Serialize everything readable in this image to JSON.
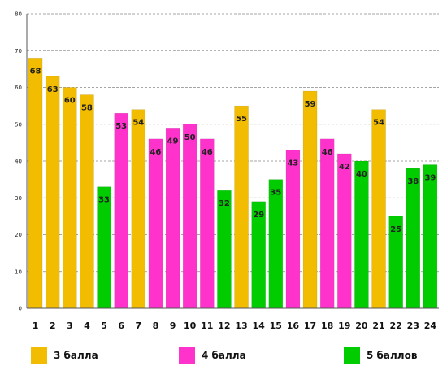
{
  "chart_data": {
    "type": "bar",
    "categories": [
      "1",
      "2",
      "3",
      "4",
      "5",
      "6",
      "7",
      "8",
      "9",
      "10",
      "11",
      "12",
      "13",
      "14",
      "15",
      "16",
      "17",
      "18",
      "19",
      "20",
      "21",
      "22",
      "23",
      "24"
    ],
    "values": [
      68,
      63,
      60,
      58,
      33,
      53,
      54,
      46,
      49,
      50,
      46,
      32,
      55,
      29,
      35,
      43,
      59,
      46,
      42,
      40,
      54,
      25,
      38,
      39
    ],
    "groups": [
      "3 балла",
      "3 балла",
      "3 балла",
      "3 балла",
      "5 баллов",
      "4 балла",
      "3 балла",
      "4 балла",
      "4 балла",
      "4 балла",
      "4 балла",
      "5 баллов",
      "3 балла",
      "5 баллов",
      "5 баллов",
      "4 балла",
      "3 балла",
      "4 балла",
      "4 балла",
      "5 баллов",
      "3 балла",
      "5 баллов",
      "5 баллов",
      "5 баллов"
    ],
    "ylim": [
      0,
      80
    ],
    "yticks": [
      0,
      10,
      20,
      30,
      40,
      50,
      60,
      70,
      80
    ],
    "grid": "dashed horizontal",
    "legend_position": "bottom",
    "legend": [
      {
        "label": "3 балла",
        "color": "#F2BC00"
      },
      {
        "label": "4 балла",
        "color": "#FF33CC"
      },
      {
        "label": "5 баллов",
        "color": "#00CC00"
      }
    ]
  }
}
